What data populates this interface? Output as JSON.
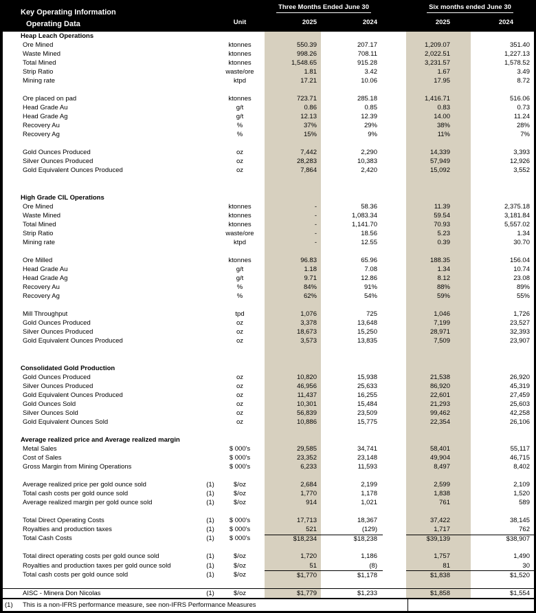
{
  "colors": {
    "shade": "#d7d0bf",
    "header_bg": "#000000",
    "page_border": "#000000"
  },
  "header": {
    "title": "Key Operating Information",
    "subtitle": "Operating Data",
    "unit_label": "Unit",
    "group1": "Three Months Ended June 30",
    "group2": "Six months ended June 30",
    "years": {
      "g1y1": "2025",
      "g1y2": "2024",
      "g2y1": "2025",
      "g2y2": "2024"
    }
  },
  "rows": [
    {
      "type": "section",
      "label": "Heap Leach Operations"
    },
    {
      "type": "data",
      "label": "Ore Mined",
      "note": "",
      "unit": "ktonnes",
      "values": [
        "550.39",
        "207.17",
        "1,209.07",
        "351.40"
      ]
    },
    {
      "type": "data",
      "label": "Waste Mined",
      "note": "",
      "unit": "ktonnes",
      "values": [
        "998.26",
        "708.11",
        "2,022.51",
        "1,227.13"
      ]
    },
    {
      "type": "data",
      "label": "Total Mined",
      "note": "",
      "unit": "ktonnes",
      "values": [
        "1,548.65",
        "915.28",
        "3,231.57",
        "1,578.52"
      ]
    },
    {
      "type": "data",
      "label": "Strip Ratio",
      "note": "",
      "unit": "waste/ore",
      "values": [
        "1.81",
        "3.42",
        "1.67",
        "3.49"
      ]
    },
    {
      "type": "data",
      "label": "Mining rate",
      "note": "",
      "unit": "ktpd",
      "values": [
        "17.21",
        "10.06",
        "17.95",
        "8.72"
      ]
    },
    {
      "type": "blank"
    },
    {
      "type": "data",
      "label": "Ore placed on pad",
      "note": "",
      "unit": "ktonnes",
      "values": [
        "723.71",
        "285.18",
        "1,416.71",
        "516.06"
      ]
    },
    {
      "type": "data",
      "label": "Head Grade Au",
      "note": "",
      "unit": "g/t",
      "values": [
        "0.86",
        "0.85",
        "0.83",
        "0.73"
      ]
    },
    {
      "type": "data",
      "label": "Head Grade Ag",
      "note": "",
      "unit": "g/t",
      "values": [
        "12.13",
        "12.39",
        "14.00",
        "11.24"
      ]
    },
    {
      "type": "data",
      "label": "Recovery Au",
      "note": "",
      "unit": "%",
      "values": [
        "37%",
        "29%",
        "38%",
        "28%"
      ]
    },
    {
      "type": "data",
      "label": "Recovery Ag",
      "note": "",
      "unit": "%",
      "values": [
        "15%",
        "9%",
        "11%",
        "7%"
      ]
    },
    {
      "type": "blank"
    },
    {
      "type": "data",
      "label": "Gold Ounces Produced",
      "note": "",
      "unit": "oz",
      "values": [
        "7,442",
        "2,290",
        "14,339",
        "3,393"
      ]
    },
    {
      "type": "data",
      "label": "Silver Ounces Produced",
      "note": "",
      "unit": "oz",
      "values": [
        "28,283",
        "10,383",
        "57,949",
        "12,926"
      ]
    },
    {
      "type": "data",
      "label": "Gold Equivalent Ounces Produced",
      "note": "",
      "unit": "oz",
      "values": [
        "7,864",
        "2,420",
        "15,092",
        "3,552"
      ]
    },
    {
      "type": "blank"
    },
    {
      "type": "blank"
    },
    {
      "type": "section",
      "label": "High Grade CIL Operations"
    },
    {
      "type": "data",
      "label": "Ore Mined",
      "note": "",
      "unit": "ktonnes",
      "values": [
        "-",
        "58.36",
        "11.39",
        "2,375.18"
      ]
    },
    {
      "type": "data",
      "label": "Waste Mined",
      "note": "",
      "unit": "ktonnes",
      "values": [
        "-",
        "1,083.34",
        "59.54",
        "3,181.84"
      ]
    },
    {
      "type": "data",
      "label": "Total Mined",
      "note": "",
      "unit": "ktonnes",
      "values": [
        "-",
        "1,141.70",
        "70.93",
        "5,557.02"
      ]
    },
    {
      "type": "data",
      "label": "Strip Ratio",
      "note": "",
      "unit": "waste/ore",
      "values": [
        "-",
        "18.56",
        "5.23",
        "1.34"
      ]
    },
    {
      "type": "data",
      "label": "Mining rate",
      "note": "",
      "unit": "ktpd",
      "values": [
        "-",
        "12.55",
        "0.39",
        "30.70"
      ]
    },
    {
      "type": "blank"
    },
    {
      "type": "data",
      "label": "Ore Milled",
      "note": "",
      "unit": "ktonnes",
      "values": [
        "96.83",
        "65.96",
        "188.35",
        "156.04"
      ]
    },
    {
      "type": "data",
      "label": "Head Grade Au",
      "note": "",
      "unit": "g/t",
      "values": [
        "1.18",
        "7.08",
        "1.34",
        "10.74"
      ]
    },
    {
      "type": "data",
      "label": "Head Grade Ag",
      "note": "",
      "unit": "g/t",
      "values": [
        "9.71",
        "12.86",
        "8.12",
        "23.08"
      ]
    },
    {
      "type": "data",
      "label": "Recovery Au",
      "note": "",
      "unit": "%",
      "values": [
        "84%",
        "91%",
        "88%",
        "89%"
      ]
    },
    {
      "type": "data",
      "label": "Recovery Ag",
      "note": "",
      "unit": "%",
      "values": [
        "62%",
        "54%",
        "59%",
        "55%"
      ]
    },
    {
      "type": "blank"
    },
    {
      "type": "data",
      "label": "Mill Throughput",
      "note": "",
      "unit": "tpd",
      "values": [
        "1,076",
        "725",
        "1,046",
        "1,726"
      ]
    },
    {
      "type": "data",
      "label": "Gold Ounces Produced",
      "note": "",
      "unit": "oz",
      "values": [
        "3,378",
        "13,648",
        "7,199",
        "23,527"
      ]
    },
    {
      "type": "data",
      "label": "Silver Ounces Produced",
      "note": "",
      "unit": "oz",
      "values": [
        "18,673",
        "15,250",
        "28,971",
        "32,393"
      ]
    },
    {
      "type": "data",
      "label": "Gold Equivalent Ounces Produced",
      "note": "",
      "unit": "oz",
      "values": [
        "3,573",
        "13,835",
        "7,509",
        "23,907"
      ]
    },
    {
      "type": "blank"
    },
    {
      "type": "blank"
    },
    {
      "type": "section",
      "label": "Consolidated Gold Production"
    },
    {
      "type": "data",
      "label": "Gold Ounces Produced",
      "note": "",
      "unit": "oz",
      "values": [
        "10,820",
        "15,938",
        "21,538",
        "26,920"
      ]
    },
    {
      "type": "data",
      "label": "Silver Ounces Produced",
      "note": "",
      "unit": "oz",
      "values": [
        "46,956",
        "25,633",
        "86,920",
        "45,319"
      ]
    },
    {
      "type": "data",
      "label": "Gold Equivalent Ounces Produced",
      "note": "",
      "unit": "oz",
      "values": [
        "11,437",
        "16,255",
        "22,601",
        "27,459"
      ]
    },
    {
      "type": "data",
      "label": "Gold Ounces Sold",
      "note": "",
      "unit": "oz",
      "values": [
        "10,301",
        "15,484",
        "21,293",
        "25,603"
      ]
    },
    {
      "type": "data",
      "label": "Silver Ounces Sold",
      "note": "",
      "unit": "oz",
      "values": [
        "56,839",
        "23,509",
        "99,462",
        "42,258"
      ]
    },
    {
      "type": "data",
      "label": "Gold Equivalent Ounces Sold",
      "note": "",
      "unit": "oz",
      "values": [
        "10,886",
        "15,775",
        "22,354",
        "26,106"
      ]
    },
    {
      "type": "blank"
    },
    {
      "type": "section",
      "label": "Average realized price and Average realized margin"
    },
    {
      "type": "data",
      "label": "Metal Sales",
      "note": "",
      "unit": "$ 000's",
      "values": [
        "29,585",
        "34,741",
        "58,401",
        "55,117"
      ]
    },
    {
      "type": "data",
      "label": "Cost of Sales",
      "note": "",
      "unit": "$ 000's",
      "values": [
        "23,352",
        "23,148",
        "49,904",
        "46,715"
      ]
    },
    {
      "type": "data",
      "label": "Gross Margin from Mining Operations",
      "note": "",
      "unit": "$ 000's",
      "values": [
        "6,233",
        "11,593",
        "8,497",
        "8,402"
      ]
    },
    {
      "type": "blank"
    },
    {
      "type": "data",
      "label": "Average realized price per gold ounce sold",
      "note": "(1)",
      "unit": "$/oz",
      "values": [
        "2,684",
        "2,199",
        "2,599",
        "2,109"
      ]
    },
    {
      "type": "data",
      "label": "Total cash costs per gold ounce sold",
      "note": "(1)",
      "unit": "$/oz",
      "values": [
        "1,770",
        "1,178",
        "1,838",
        "1,520"
      ]
    },
    {
      "type": "data",
      "label": "Average realized margin per gold ounce sold",
      "note": "(1)",
      "unit": "$/oz",
      "values": [
        "914",
        "1,021",
        "761",
        "589"
      ]
    },
    {
      "type": "blank"
    },
    {
      "type": "data",
      "label": "Total Direct Operating Costs",
      "note": "(1)",
      "unit": "$ 000's",
      "values": [
        "17,713",
        "18,367",
        "37,422",
        "38,145"
      ]
    },
    {
      "type": "data",
      "label": "Royalties and production taxes",
      "note": "(1)",
      "unit": "$ 000's",
      "values": [
        "521",
        "(129)",
        "1,717",
        "762"
      ]
    },
    {
      "type": "data",
      "label": "Total Cash Costs",
      "note": "(1)",
      "unit": "$ 000's",
      "values": [
        "$18,234",
        "$18,238",
        "$39,139",
        "$38,907"
      ],
      "rule": true
    },
    {
      "type": "blank"
    },
    {
      "type": "data",
      "label": "Total direct operating costs per gold ounce sold",
      "note": "(1)",
      "unit": "$/oz",
      "values": [
        "1,720",
        "1,186",
        "1,757",
        "1,490"
      ]
    },
    {
      "type": "data",
      "label": "Royalties and production taxes per gold ounce sold",
      "note": "(1)",
      "unit": "$/oz",
      "values": [
        "51",
        "(8)",
        "81",
        "30"
      ]
    },
    {
      "type": "data",
      "label": "Total cash costs per gold ounce sold",
      "note": "(1)",
      "unit": "$/oz",
      "values": [
        "$1,770",
        "$1,178",
        "$1,838",
        "$1,520"
      ],
      "rule": true
    },
    {
      "type": "blank"
    },
    {
      "type": "data",
      "label": "AISC - Minera Don Nicolas",
      "note": "(1)",
      "unit": "$/oz",
      "values": [
        "$1,779",
        "$1,233",
        "$1,858",
        "$1,554"
      ],
      "topline": true
    }
  ],
  "footnote": {
    "marker": "(1)",
    "text": "This is a non-IFRS performance measure, see non-IFRS Performance Measures"
  }
}
